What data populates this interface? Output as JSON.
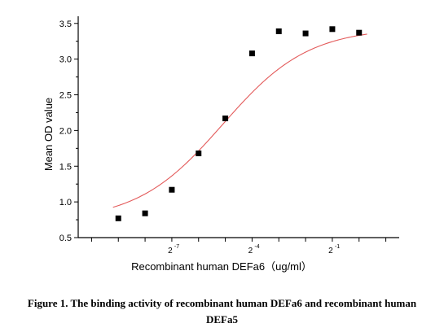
{
  "chart_data": {
    "type": "scatter",
    "xlabel": "Recombinant human  DEFa6（ug/ml）",
    "ylabel": "Mean OD value",
    "x_scale": "log2",
    "xlim": [
      -10.5,
      1.5
    ],
    "ylim": [
      0.5,
      3.6
    ],
    "yticks": [
      "0.5",
      "1.0",
      "1.5",
      "2.0",
      "2.5",
      "3.0",
      "3.5"
    ],
    "xticks": [
      {
        "base": "2",
        "exponent": "-7",
        "value": -7
      },
      {
        "base": "2",
        "exponent": "-4",
        "value": -4
      },
      {
        "base": "2",
        "exponent": "-1",
        "value": -1
      }
    ],
    "points": [
      {
        "x": -9,
        "y": 0.77
      },
      {
        "x": -8,
        "y": 0.84
      },
      {
        "x": -7,
        "y": 1.17
      },
      {
        "x": -6,
        "y": 1.68
      },
      {
        "x": -5,
        "y": 2.17
      },
      {
        "x": -4,
        "y": 3.08
      },
      {
        "x": -3,
        "y": 3.39
      },
      {
        "x": -2,
        "y": 3.36
      },
      {
        "x": -1,
        "y": 3.42
      },
      {
        "x": 0,
        "y": 3.37
      }
    ],
    "fit": {
      "type": "4PL",
      "bottom": 0.73,
      "top": 3.44,
      "log2_ec50": -5.1,
      "hill": 0.9
    },
    "colors": {
      "points": "#000000",
      "fit": "#e35a5a"
    }
  },
  "caption": {
    "line1": "Figure 1. The binding activity of recombinant human DEFa6 and recombinant human",
    "line2": "DEFa5"
  }
}
